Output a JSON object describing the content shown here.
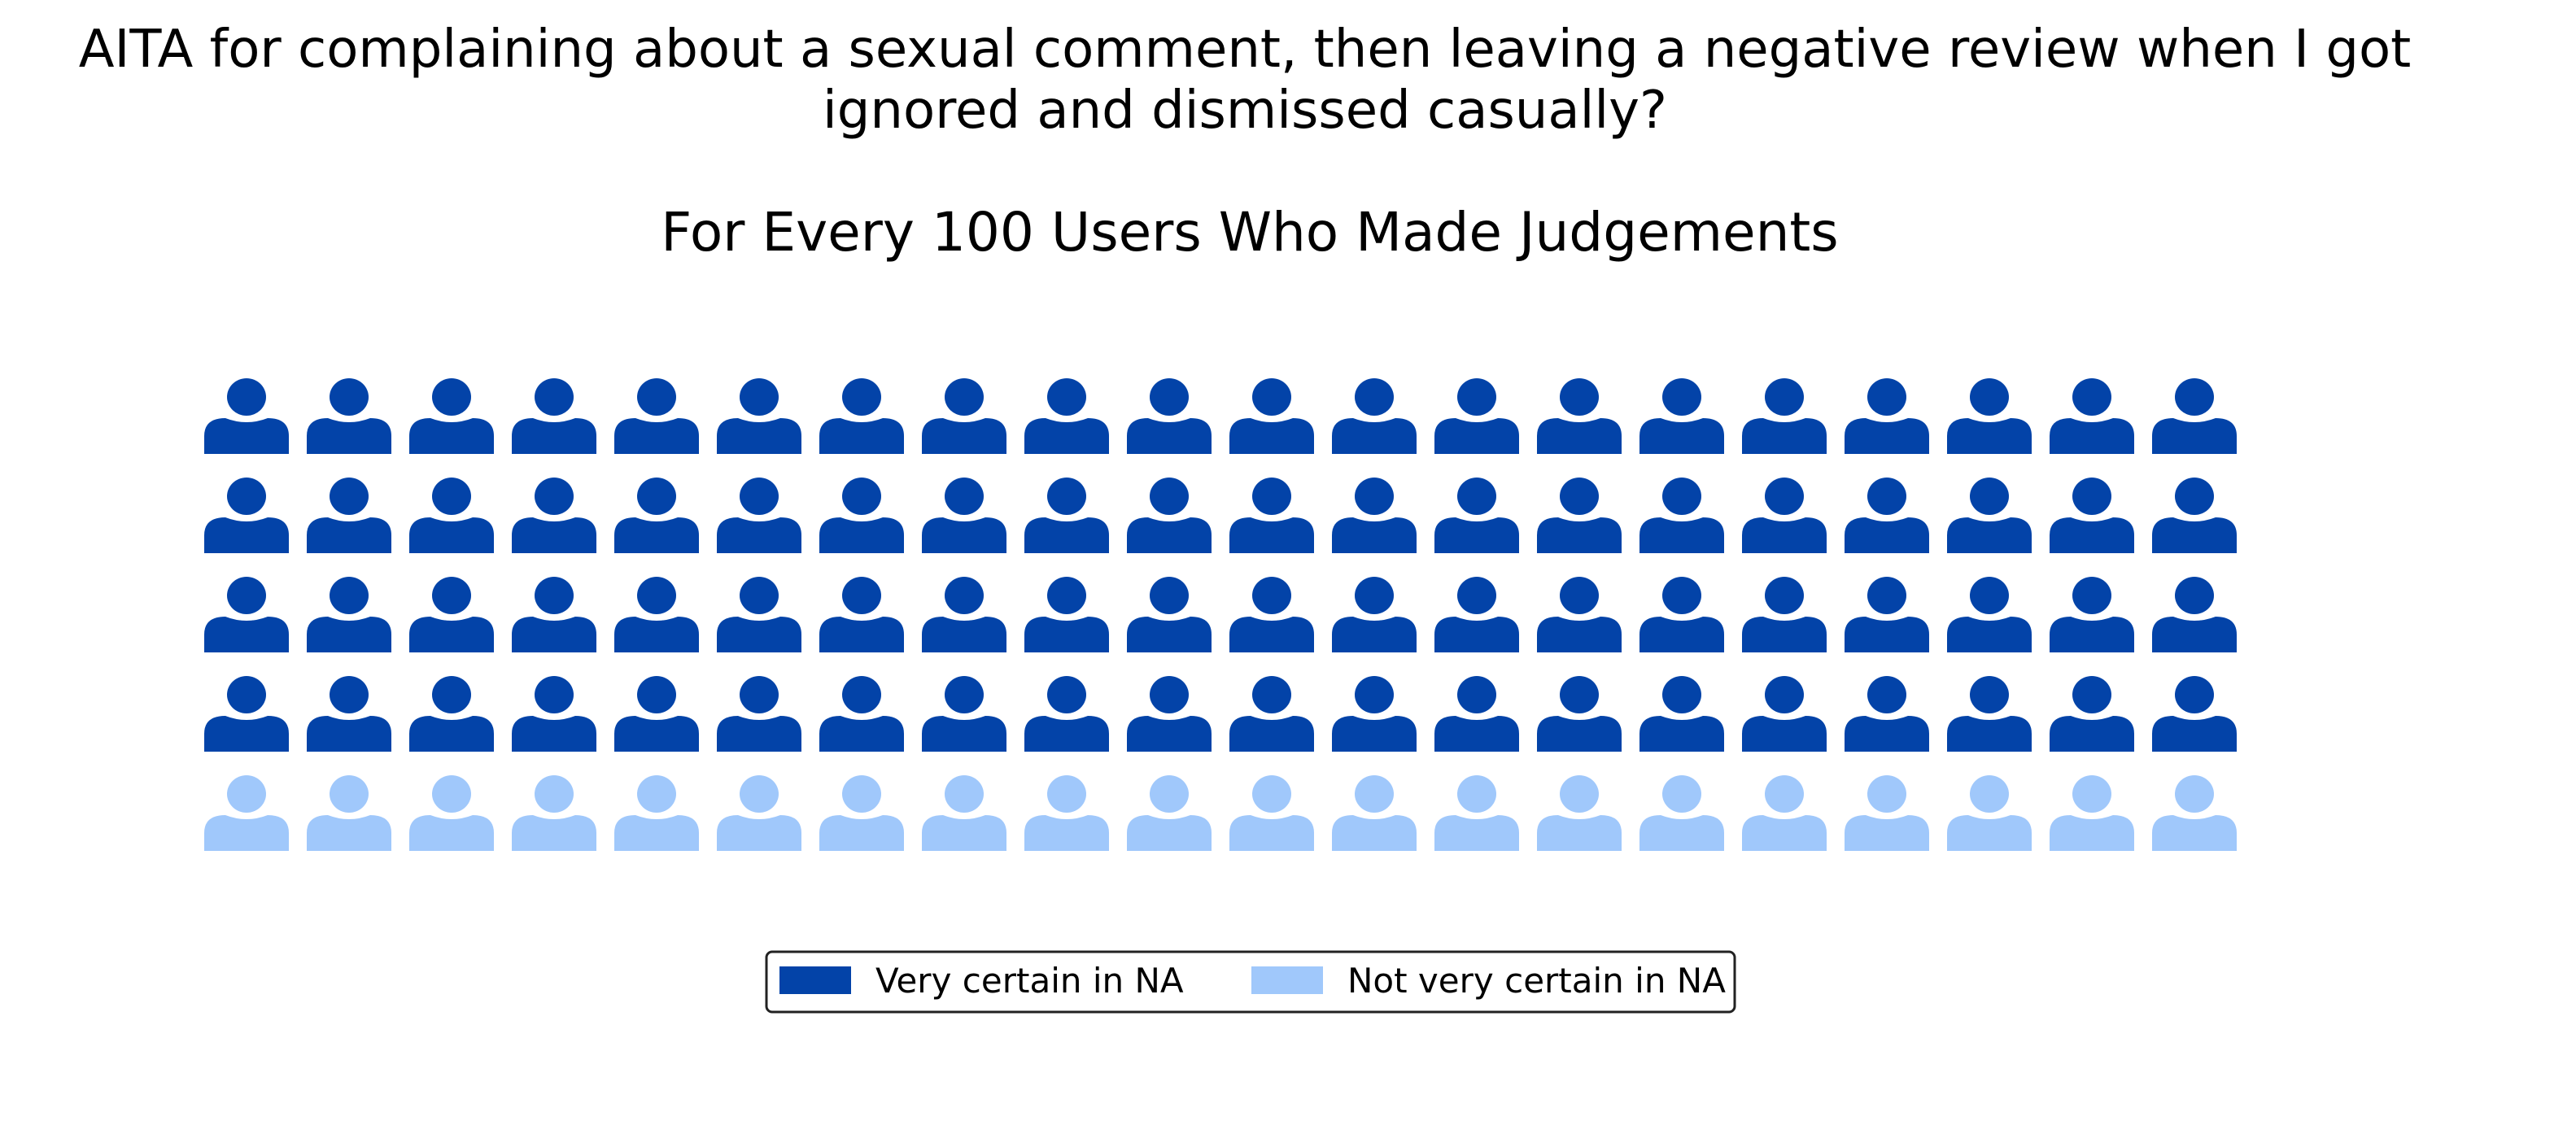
{
  "chart_data": {
    "type": "waffle",
    "title": "AITA for complaining about a sexual comment, then leaving a negative review when I got ignored and dismissed casually?",
    "title_lines": [
      "AITA for complaining about a sexual comment, then leaving a negative review when I got",
      "ignored and dismissed casually?"
    ],
    "subtitle": "For Every 100 Users Who Made Judgements",
    "grid": {
      "rows": 5,
      "columns": 20
    },
    "series": [
      {
        "name": "Very certain in NA",
        "value": 80,
        "color": "#0343a8"
      },
      {
        "name": "Not very certain in NA",
        "value": 20,
        "color": "#a0c8fb"
      }
    ],
    "legend_position": "bottom-center",
    "icon": "person-icon"
  }
}
